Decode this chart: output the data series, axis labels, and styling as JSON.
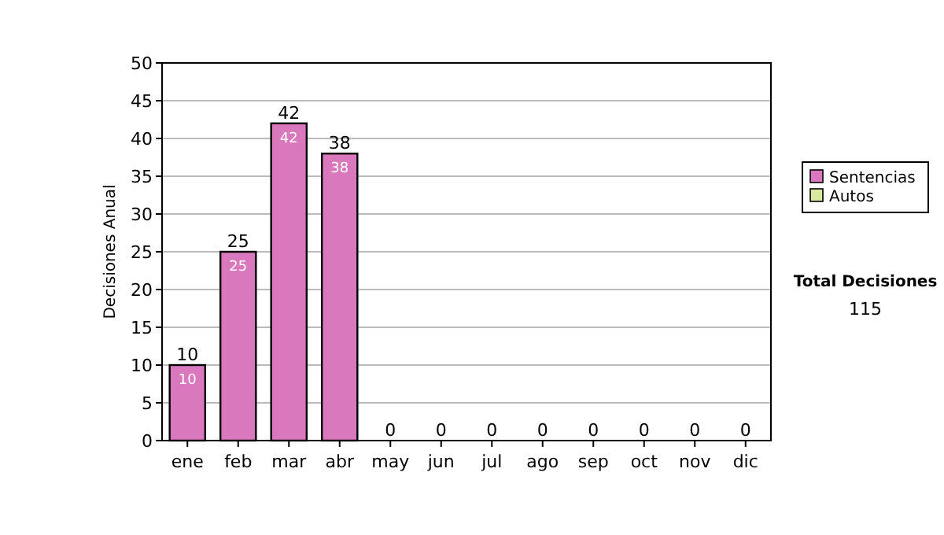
{
  "chart_data": {
    "type": "bar",
    "stacked": true,
    "ylabel": "Decisiones Anual",
    "categories": [
      "ene",
      "feb",
      "mar",
      "abr",
      "may",
      "jun",
      "jul",
      "ago",
      "sep",
      "oct",
      "nov",
      "dic"
    ],
    "series": [
      {
        "name": "Sentencias",
        "color": "#d978bd",
        "values": [
          10,
          25,
          42,
          38,
          0,
          0,
          0,
          0,
          0,
          0,
          0,
          0
        ],
        "value_labels": [
          "10",
          "25",
          "42",
          "38",
          null,
          null,
          null,
          null,
          null,
          null,
          null,
          null
        ]
      },
      {
        "name": "Autos",
        "color": "#d9eaa0",
        "values": [
          0,
          0,
          0,
          0,
          0,
          0,
          0,
          0,
          0,
          0,
          0,
          0
        ]
      }
    ],
    "totals": [
      "10",
      "25",
      "42",
      "38",
      "0",
      "0",
      "0",
      "0",
      "0",
      "0",
      "0",
      "0"
    ],
    "ylim": [
      0,
      50
    ],
    "yticks": [
      0,
      5,
      10,
      15,
      20,
      25,
      30,
      35,
      40,
      45,
      50
    ],
    "grid": "y",
    "legend": "right",
    "annotations": [
      "Total Decisiones",
      "115"
    ]
  }
}
